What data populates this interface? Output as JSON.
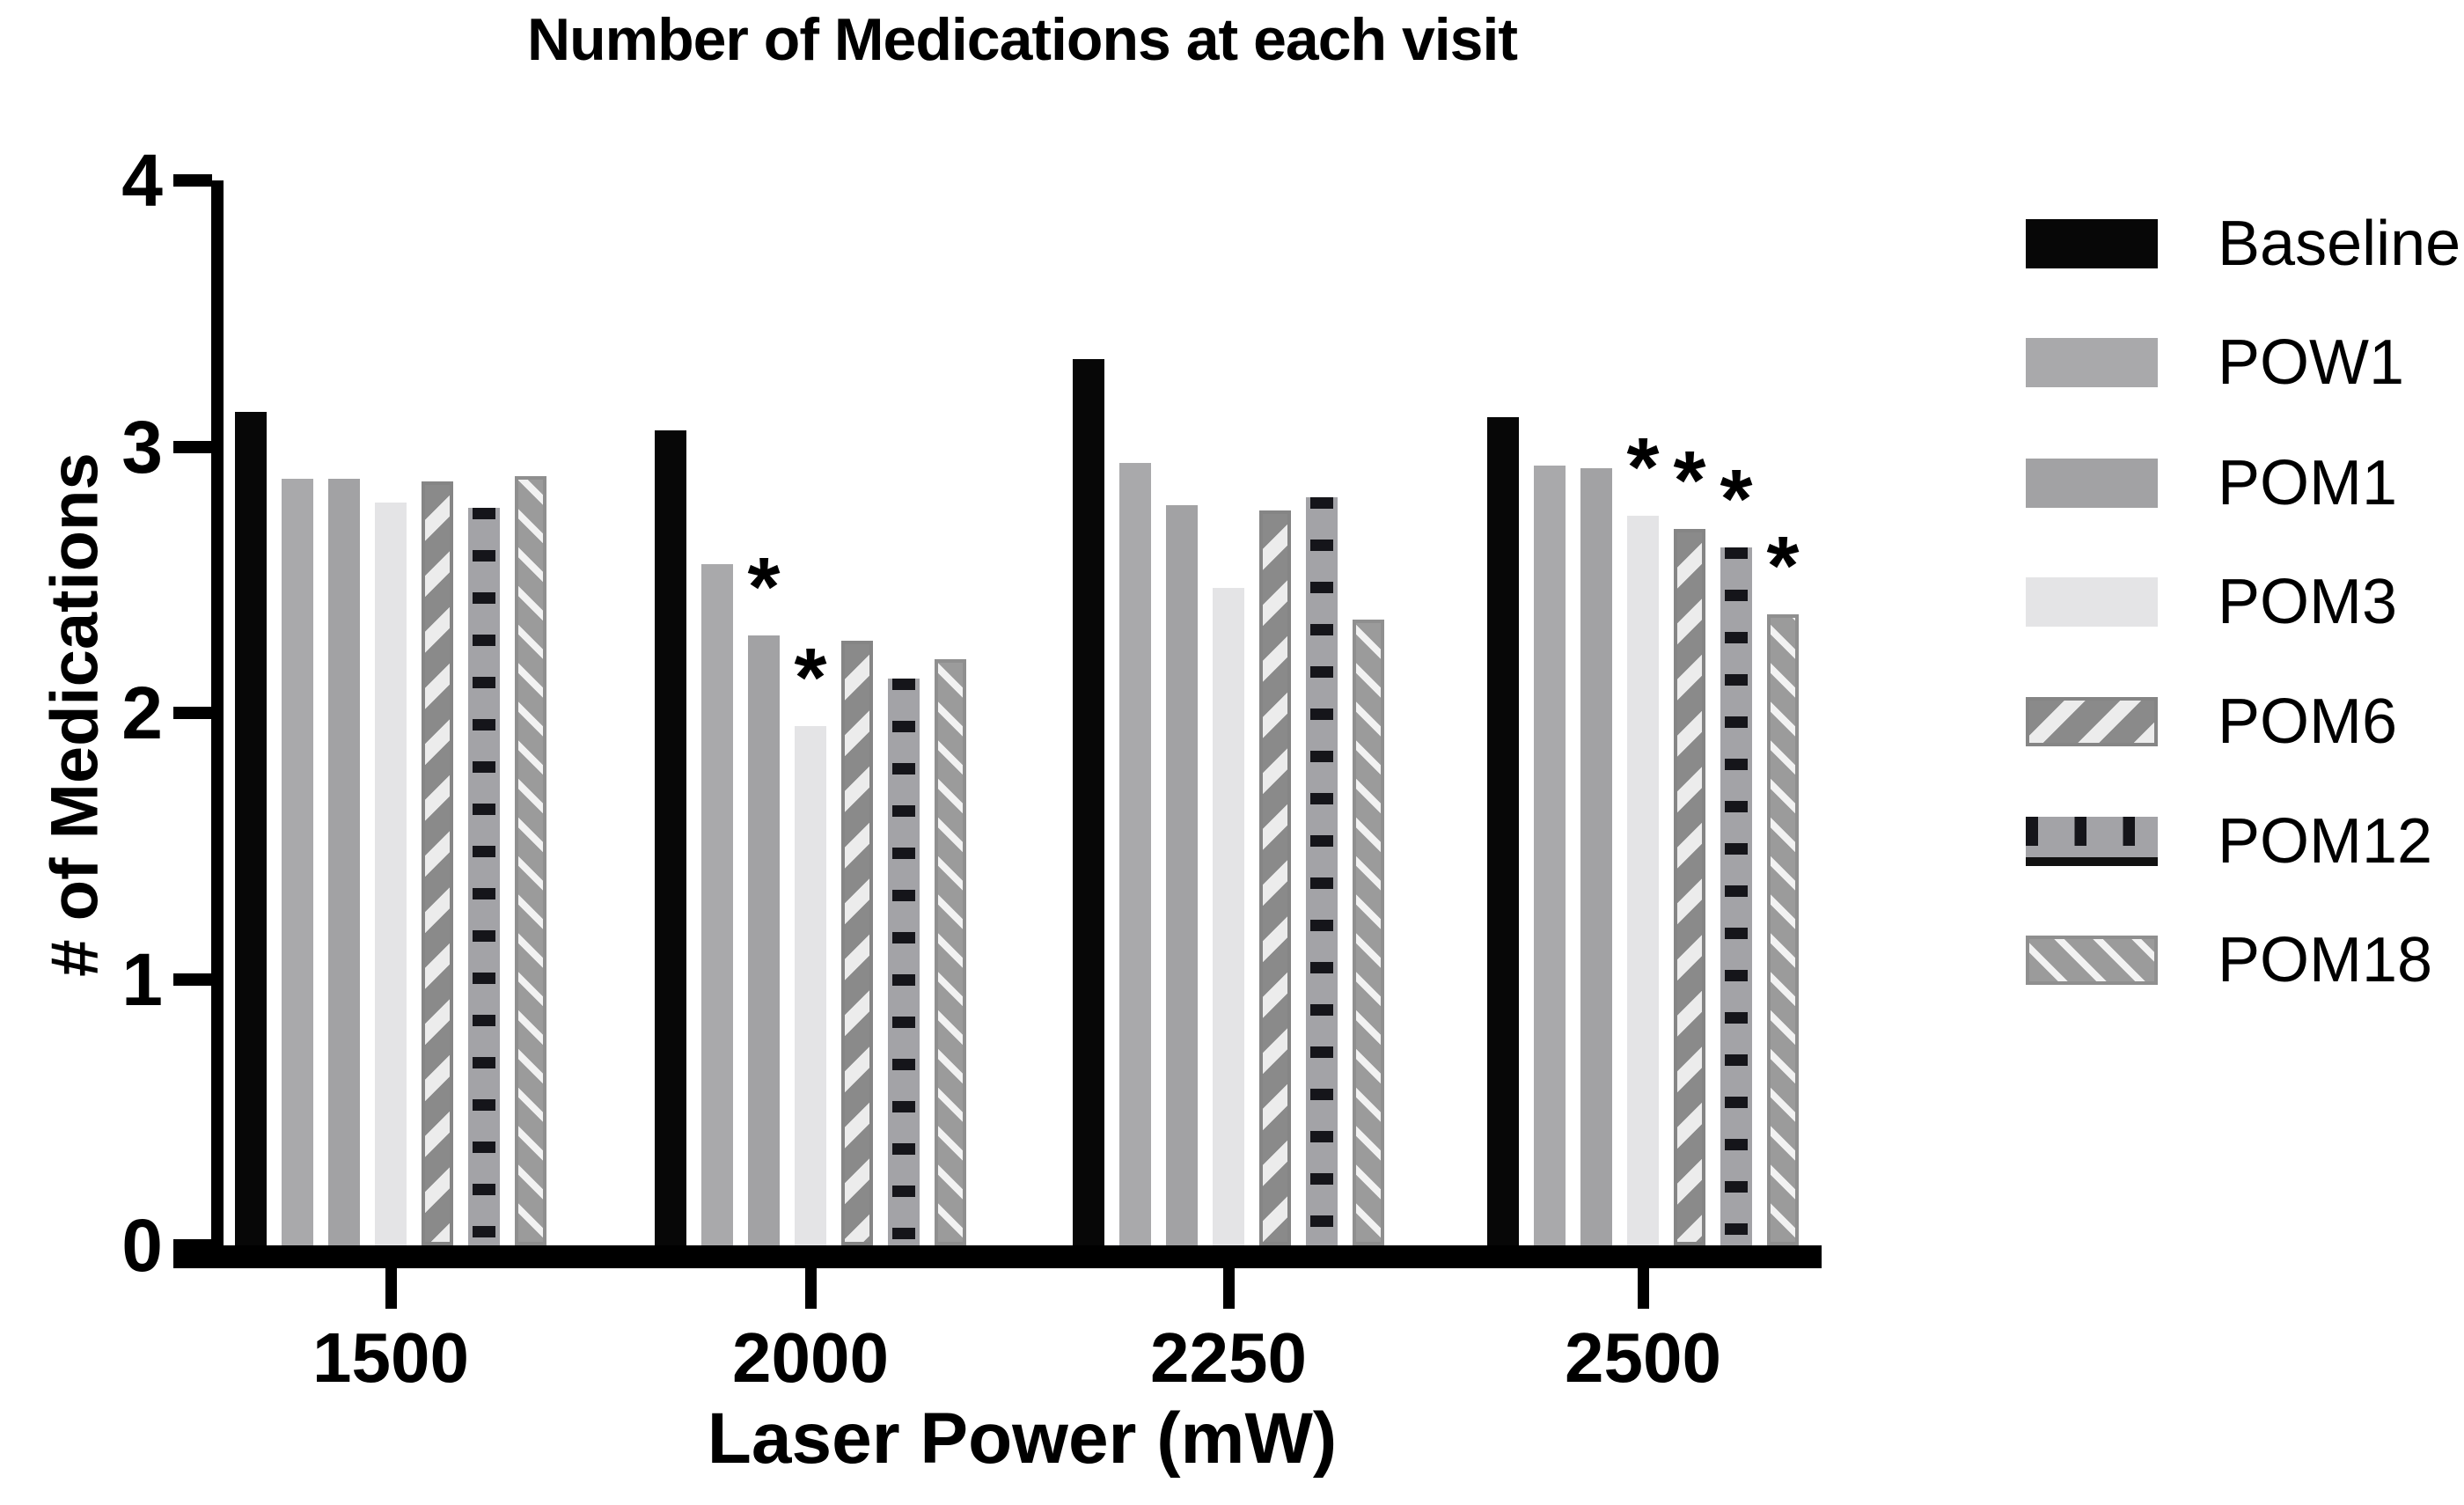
{
  "title": "Number of Medications at each visit",
  "axes": {
    "y_label": "# of Medications",
    "x_label": "Laser Power (mW)"
  },
  "chart_data": {
    "type": "bar",
    "title": "Number of Medications at each visit",
    "xlabel": "Laser Power (mW)",
    "ylabel": "# of Medications",
    "categories": [
      "1500",
      "2000",
      "2250",
      "2500"
    ],
    "ylim": [
      0,
      4
    ],
    "yticks": [
      0,
      1,
      2,
      3,
      4
    ],
    "grid": false,
    "legend_position": "right",
    "series": [
      {
        "name": "Baseline",
        "pattern": "solid-black",
        "color": "#070707",
        "values": [
          3.13,
          3.06,
          3.33,
          3.11
        ]
      },
      {
        "name": "POW1",
        "pattern": "solid-gray",
        "color": "#a9a9ab",
        "values": [
          2.88,
          2.56,
          2.94,
          2.93
        ]
      },
      {
        "name": "POM1",
        "pattern": "solid-gray2",
        "color": "#a2a2a4",
        "values": [
          2.88,
          2.29,
          2.78,
          2.92
        ]
      },
      {
        "name": "POM3",
        "pattern": "solid-lightgray",
        "color": "#e4e4e6",
        "values": [
          2.79,
          1.95,
          2.47,
          2.74
        ]
      },
      {
        "name": "POM6",
        "pattern": "diag-up-stripes",
        "color": "#8a8a8a",
        "values": [
          2.87,
          2.27,
          2.76,
          2.69
        ]
      },
      {
        "name": "POM12",
        "pattern": "horiz-dashes",
        "color": "#a3a3a7",
        "values": [
          2.77,
          2.13,
          2.81,
          2.62
        ]
      },
      {
        "name": "POM18",
        "pattern": "diag-down-stripes",
        "color": "#9b9b9b",
        "values": [
          2.89,
          2.2,
          2.35,
          2.37
        ]
      }
    ],
    "significance": [
      {
        "category": "2000",
        "series": [
          "POM1",
          "POM3"
        ]
      },
      {
        "category": "2500",
        "series": [
          "POM3",
          "POM6",
          "POM12",
          "POM18"
        ]
      }
    ],
    "sig_symbol": "*"
  },
  "colors": {
    "axis": "#000000",
    "background": "#ffffff",
    "bar_black": "#070707",
    "bar_gray": "#a9a9ab",
    "bar_gray2": "#a2a2a4",
    "bar_lightgray": "#e4e4e6",
    "stripe_light": "#ececec",
    "dash_dark": "#15151a"
  }
}
